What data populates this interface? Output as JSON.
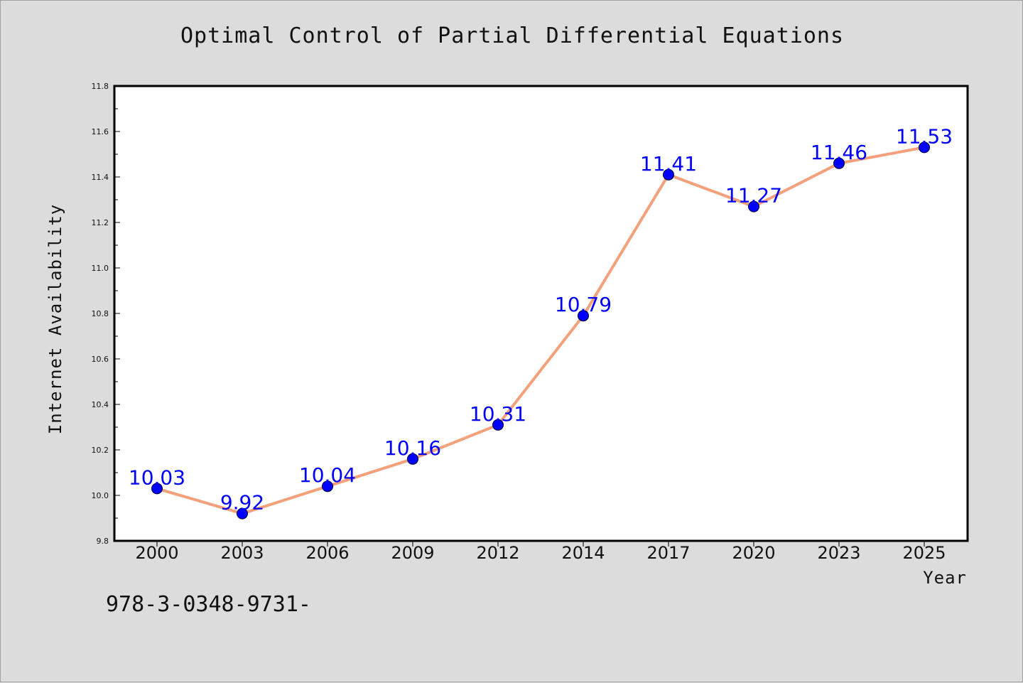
{
  "chart_data": {
    "type": "line",
    "title": "Optimal Control of Partial Differential Equations",
    "xlabel": "Year",
    "ylabel": "Internet Availability",
    "categories": [
      "2000",
      "2003",
      "2006",
      "2009",
      "2012",
      "2014",
      "2017",
      "2020",
      "2023",
      "2025"
    ],
    "series": [
      {
        "values": [
          10.03,
          9.92,
          10.04,
          10.16,
          10.31,
          10.79,
          11.41,
          11.27,
          11.46,
          11.53
        ],
        "labels": [
          "10.03",
          "9.92",
          "10.04",
          "10.16",
          "10.31",
          "10.79",
          "11.41",
          "11.27",
          "11.46",
          "11.53"
        ],
        "line_color": "#f4a07a",
        "marker_color": "#0000ff"
      }
    ],
    "ylim": [
      9.8,
      11.8
    ],
    "yticks": [
      "9.8",
      "10.0",
      "10.2",
      "10.4",
      "10.6",
      "10.8",
      "11.0",
      "11.2",
      "11.4",
      "11.6",
      "11.8"
    ],
    "grid": false,
    "data_label_color": "#0000ff"
  },
  "footer": {
    "isbn": "978-3-0348-9731-"
  },
  "colors": {
    "background": "#dcdcdc",
    "plot_area": "#ffffff",
    "line": "#f4a07a",
    "markers": "#0000ff"
  }
}
